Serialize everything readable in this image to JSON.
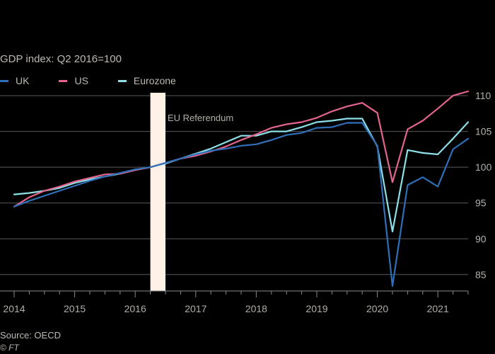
{
  "subtitle": "GDP index: Q2 2016=100",
  "source": "Source: OECD",
  "brand": "© FT",
  "colors": {
    "UK": "#2f6fb8",
    "US": "#e3658d",
    "Eurozone": "#8ee0e8",
    "highlight": "#fff1e5",
    "grid": "#5a5a5a",
    "text": "#b3aea8"
  },
  "chart_data": {
    "type": "line",
    "title": "",
    "subtitle": "GDP index: Q2 2016=100",
    "xlabel": "",
    "ylabel": "",
    "ylim": [
      83,
      111
    ],
    "xlim": [
      2014.0,
      2021.5
    ],
    "yticks": [
      85,
      90,
      95,
      100,
      105,
      110
    ],
    "xticks": [
      2014,
      2015,
      2016,
      2017,
      2018,
      2019,
      2020,
      2021
    ],
    "xtick_labels": [
      "2014",
      "2015",
      "2016",
      "2017",
      "2018",
      "2019",
      "2020",
      "2021"
    ],
    "grid": true,
    "legend": "top-left",
    "annotation": {
      "label": "EU Referendum",
      "x_start": 2016.25,
      "x_end": 2016.5
    },
    "x": [
      2014.0,
      2014.25,
      2014.5,
      2014.75,
      2015.0,
      2015.25,
      2015.5,
      2015.75,
      2016.0,
      2016.25,
      2016.5,
      2016.75,
      2017.0,
      2017.25,
      2017.5,
      2017.75,
      2018.0,
      2018.25,
      2018.5,
      2018.75,
      2019.0,
      2019.25,
      2019.5,
      2019.75,
      2020.0,
      2020.25,
      2020.5,
      2020.75,
      2021.0,
      2021.25,
      2021.5
    ],
    "series": [
      {
        "name": "UK",
        "values": [
          94.5,
          95.3,
          96.0,
          96.7,
          97.4,
          98.1,
          98.7,
          99.2,
          99.7,
          100.0,
          100.6,
          101.2,
          101.8,
          102.3,
          102.6,
          103.0,
          103.2,
          103.8,
          104.5,
          104.8,
          105.5,
          105.6,
          106.2,
          106.2,
          103.0,
          83.4,
          97.5,
          98.6,
          97.3,
          102.5,
          104.0
        ]
      },
      {
        "name": "US",
        "values": [
          94.5,
          95.8,
          96.7,
          97.3,
          98.0,
          98.5,
          99.0,
          99.1,
          99.6,
          100.0,
          100.6,
          101.2,
          101.6,
          102.2,
          102.9,
          103.8,
          104.6,
          105.5,
          106.0,
          106.3,
          106.9,
          107.8,
          108.5,
          109.0,
          107.6,
          97.9,
          105.3,
          106.5,
          108.2,
          110.0,
          110.6
        ]
      },
      {
        "name": "Eurozone",
        "values": [
          96.2,
          96.4,
          96.7,
          97.1,
          97.8,
          98.3,
          98.7,
          99.1,
          99.6,
          100.0,
          100.5,
          101.2,
          101.9,
          102.6,
          103.5,
          104.4,
          104.4,
          105.0,
          105.0,
          105.6,
          106.3,
          106.5,
          106.8,
          106.8,
          102.9,
          91.0,
          102.4,
          102.0,
          101.8,
          104.0,
          106.3
        ]
      }
    ]
  }
}
